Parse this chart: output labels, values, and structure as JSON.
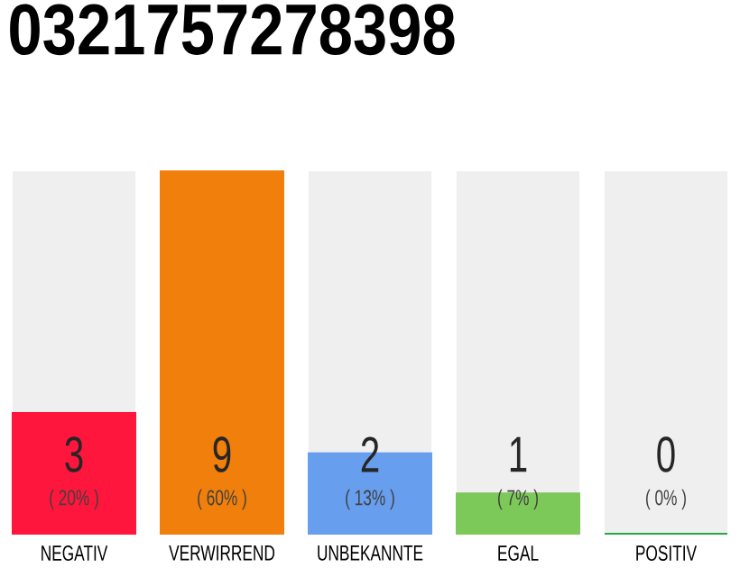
{
  "chart_data": {
    "type": "bar",
    "title": "0321757278398",
    "categories": [
      "NEGATIV",
      "VERWIRREND",
      "UNBEKANNTE",
      "EGAL",
      "POSITIV"
    ],
    "values": [
      3,
      9,
      2,
      1,
      0
    ],
    "colors": [
      "#ff163c",
      "#f07f0c",
      "#679eee",
      "#7cc95a",
      "#22aa44"
    ],
    "data_labels": true,
    "bands": [
      {
        "axis": "x",
        "from": "NEGATIV",
        "to": "NEGATIV",
        "color": "#efefef"
      },
      {
        "axis": "x",
        "from": "UNBEKANNTE",
        "to": "UNBEKANNTE",
        "color": "#efefef"
      },
      {
        "axis": "x",
        "from": "EGAL",
        "to": "EGAL",
        "color": "#efefef"
      },
      {
        "axis": "x",
        "from": "POSITIV",
        "to": "POSITIV",
        "color": "#efefef"
      }
    ],
    "annotations": [
      "( 20% )",
      "( 60% )",
      "( 13% )",
      "( 7% )",
      "( 0% )"
    ]
  }
}
